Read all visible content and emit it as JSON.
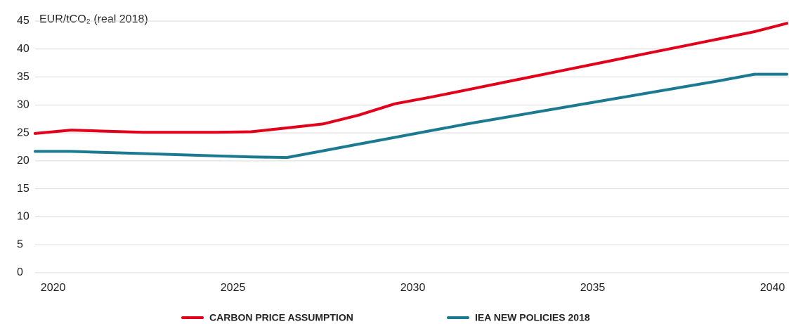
{
  "chart_data": {
    "type": "line",
    "y_label": "EUR/tCO₂ (real 2018)",
    "x": [
      2019.5,
      2020.5,
      2021.5,
      2022.5,
      2023.5,
      2024.5,
      2025.5,
      2026.5,
      2027.5,
      2028.5,
      2029.5,
      2030.5,
      2031.5,
      2032.5,
      2033.5,
      2034.5,
      2035.5,
      2036.5,
      2037.5,
      2038.5,
      2039.5,
      2040.4
    ],
    "series": [
      {
        "name": "CARBON PRICE ASSUMPTION",
        "color": "#e2001a",
        "values": [
          24.9,
          25.5,
          25.3,
          25.1,
          25.1,
          25.1,
          25.2,
          25.9,
          26.6,
          28.2,
          30.2,
          31.4,
          32.7,
          34.0,
          35.3,
          36.6,
          37.9,
          39.2,
          40.5,
          41.8,
          43.1,
          44.6
        ]
      },
      {
        "name": "IEA NEW POLICIES 2018",
        "color": "#1b7a92",
        "values": [
          21.7,
          21.7,
          21.5,
          21.3,
          21.1,
          20.9,
          20.7,
          20.6,
          21.8,
          23.0,
          24.2,
          25.4,
          26.6,
          27.7,
          28.8,
          29.9,
          31.0,
          32.1,
          33.2,
          34.3,
          35.5,
          35.5
        ]
      }
    ],
    "xlim": [
      2019.5,
      2040.4
    ],
    "xticks": [
      2020,
      2025,
      2030,
      2035,
      2040
    ],
    "ylim": [
      0,
      45
    ],
    "yticks": [
      0,
      5,
      10,
      15,
      20,
      25,
      30,
      35,
      40,
      45
    ],
    "grid": true
  }
}
